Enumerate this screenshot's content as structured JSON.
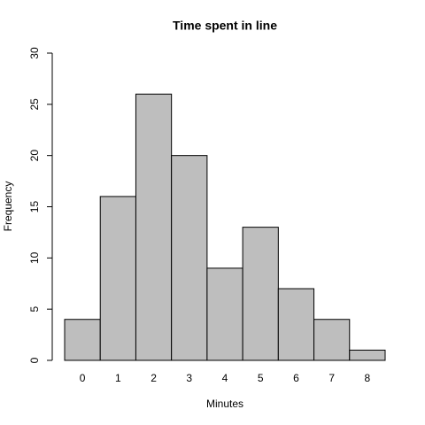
{
  "chart_data": {
    "type": "bar",
    "title": "Time spent in line",
    "x_label": "Minutes",
    "y_label": "Frequency",
    "categories": [
      "0",
      "1",
      "2",
      "3",
      "4",
      "5",
      "6",
      "7",
      "8"
    ],
    "values": [
      4,
      16,
      26,
      20,
      9,
      13,
      7,
      4,
      1
    ],
    "color": "#bebebe",
    "ylim": [
      0,
      30
    ],
    "yticks": [
      0,
      5,
      10,
      15,
      20,
      25,
      30
    ]
  }
}
